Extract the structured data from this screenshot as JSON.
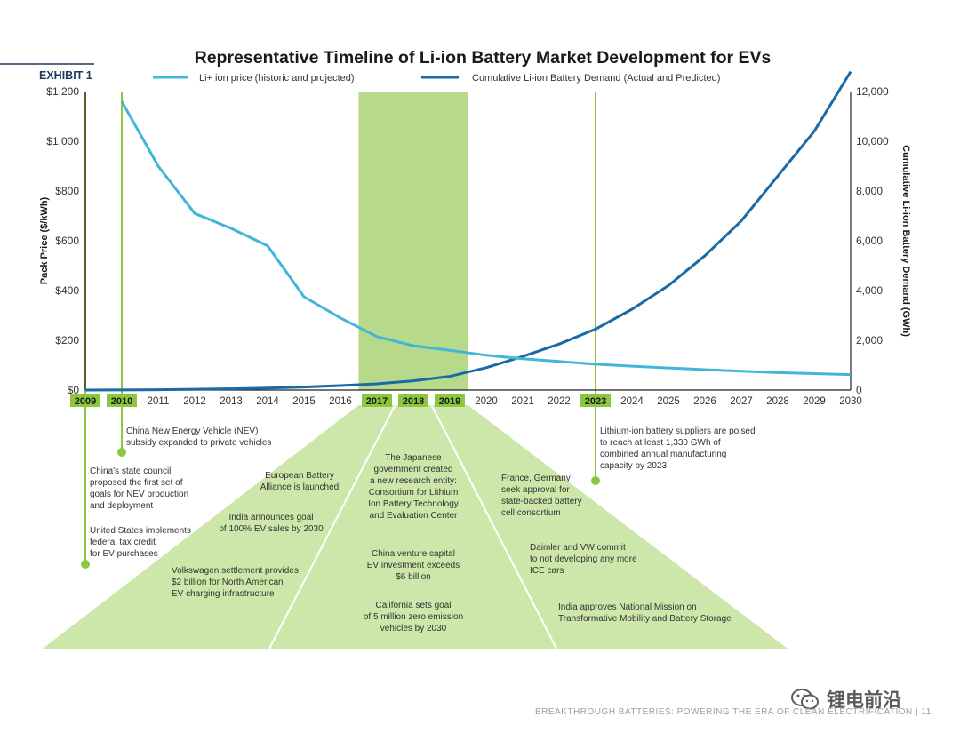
{
  "exhibit_label": "EXHIBIT 1",
  "footer": "BREAKTHROUGH BATTERIES: POWERING THE ERA OF CLEAN ELECTRIFICATION | 11",
  "watermark": "锂电前沿",
  "colors": {
    "price": "#41b6d9",
    "demand": "#1a6aa5",
    "accent": "#8dc63f",
    "band": "#b6d98a",
    "wedge": "#cde6a9",
    "navy": "#1c3a5c",
    "text": "#333333",
    "axis": "#222222"
  },
  "chart_data": {
    "type": "line",
    "title": "Representative Timeline of Li-ion Battery Market Development for EVs",
    "ylabel_left": "Pack Price ($/kWh)",
    "ylabel_right": "Cumulative Li-ion Battery Demand (GWh)",
    "ylim_left": [
      0,
      1200
    ],
    "ylim_right": [
      0,
      12000
    ],
    "yticks_left": [
      "$0",
      "$200",
      "$400",
      "$600",
      "$800",
      "$1,000",
      "$1,200"
    ],
    "yticks_right": [
      "0",
      "2,000",
      "4,000",
      "6,000",
      "8,000",
      "10,000",
      "12,000"
    ],
    "x": [
      2009,
      2010,
      2011,
      2012,
      2013,
      2014,
      2015,
      2016,
      2017,
      2018,
      2019,
      2020,
      2021,
      2022,
      2023,
      2024,
      2025,
      2026,
      2027,
      2028,
      2029,
      2030
    ],
    "xtick_labels": [
      "2009",
      "2010",
      "2011",
      "2012",
      "2013",
      "2014",
      "2015",
      "2016",
      "2017",
      "2018",
      "2019",
      "2020",
      "2021",
      "2022",
      "2023",
      "2024",
      "2025",
      "2026",
      "2027",
      "2028",
      "2029",
      "2030"
    ],
    "highlighted_years": [
      "2009",
      "2010",
      "2017",
      "2018",
      "2019",
      "2023"
    ],
    "highlight_band": [
      2016.5,
      2019.5
    ],
    "series": [
      {
        "name": "Li+ ion price (historic and projected)",
        "x": [
          2010,
          2011,
          2012,
          2013,
          2014,
          2015,
          2016,
          2017,
          2018,
          2019,
          2020,
          2021,
          2022,
          2023,
          2024,
          2025,
          2026,
          2027,
          2028,
          2029,
          2030
        ],
        "values": [
          1160,
          900,
          710,
          650,
          580,
          375,
          290,
          215,
          178,
          160,
          140,
          126,
          115,
          104,
          96,
          89,
          82,
          76,
          70,
          66,
          62
        ]
      },
      {
        "name": "Cumulative Li-ion Battery Demand (Actual and Predicted)",
        "x": [
          2009,
          2010,
          2011,
          2012,
          2013,
          2014,
          2015,
          2016,
          2017,
          2018,
          2019,
          2020,
          2021,
          2022,
          2023,
          2024,
          2025,
          2026,
          2027,
          2028,
          2029,
          2030
        ],
        "values": [
          0,
          5,
          15,
          30,
          50,
          80,
          120,
          180,
          250,
          370,
          550,
          900,
          1350,
          1850,
          2450,
          3250,
          4200,
          5400,
          6800,
          8600,
          10400,
          12800
        ]
      }
    ]
  },
  "annotations": {
    "y2010": "China New Energy Vehicle (NEV)\nsubsidy expanded to private vehicles",
    "y2009a": "China's state council\nproposed the first set of\ngoals for NEV production\nand deployment",
    "y2009b": "United States implements\nfederal tax credit\nfor EV purchases",
    "y2023": "Lithium-ion battery suppliers are poised\nto reach at least 1,330 GWh of\ncombined annual manufacturing\ncapacity by 2023",
    "w2017a": "European Battery\nAlliance is launched",
    "w2017b": "India announces goal\nof 100% EV sales by 2030",
    "w2017c": "Volkswagen settlement provides\n$2 billion for North American\nEV charging infrastructure",
    "w2018a": "The Japanese\ngovernment created\na new research entity:\nConsortium for Lithium\nIon Battery Technology\nand Evaluation Center",
    "w2018b": "China venture capital\nEV investment exceeds\n$6 billion",
    "w2018c": "California sets goal\nof 5 million zero emission\nvehicles by 2030",
    "w2019a": "France, Germany\nseek approval for\nstate-backed battery\ncell consortium",
    "w2019b": "Daimler and VW commit\nto not developing any more\nICE cars",
    "w2019c": "India approves National Mission on\nTransformative Mobility and Battery Storage"
  }
}
